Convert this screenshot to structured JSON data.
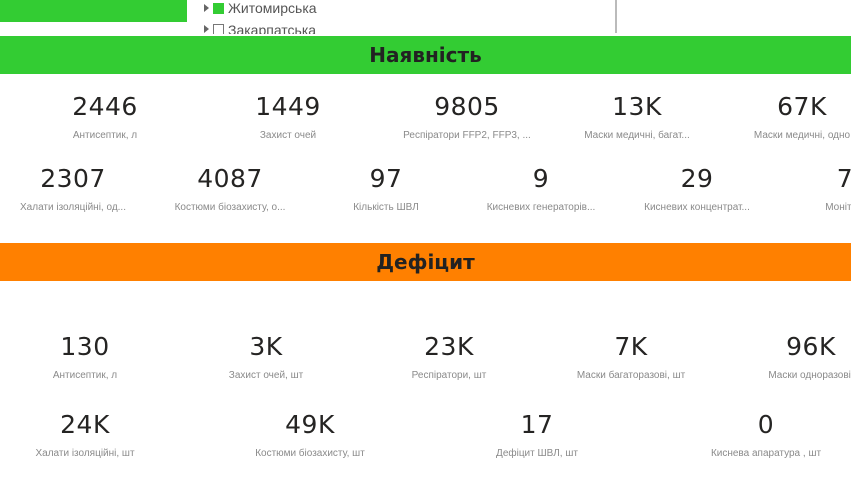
{
  "colors": {
    "green": "#33CC33",
    "orange": "#FF8000"
  },
  "tree": [
    {
      "label": "Житомирська",
      "checked": true
    },
    {
      "label": "Закарпатська",
      "checked": false
    }
  ],
  "availability": {
    "title": "Наявність",
    "cards": [
      {
        "value": "2446",
        "label": "Антисептик, л"
      },
      {
        "value": "1449",
        "label": "Захист очей"
      },
      {
        "value": "9805",
        "label": "Респіратори FFP2, FFP3, ..."
      },
      {
        "value": "13K",
        "label": "Маски медичні, багат..."
      },
      {
        "value": "67K",
        "label": "Маски медичні, одно"
      },
      {
        "value": "2307",
        "label": "Халати ізоляційні, од..."
      },
      {
        "value": "4087",
        "label": "Костюми біозахисту, о..."
      },
      {
        "value": "97",
        "label": "Кількість ШВЛ"
      },
      {
        "value": "9",
        "label": "Кисневих генераторів..."
      },
      {
        "value": "29",
        "label": "Кисневих концентрат..."
      },
      {
        "value": "7",
        "label": "Моніторі"
      }
    ]
  },
  "deficit": {
    "title": "Дефіцит",
    "cards": [
      {
        "value": "130",
        "label": "Антисептик, л"
      },
      {
        "value": "3K",
        "label": "Захист очей, шт"
      },
      {
        "value": "23K",
        "label": "Респіратори, шт"
      },
      {
        "value": "7K",
        "label": "Маски багаторазові, шт"
      },
      {
        "value": "96K",
        "label": "Маски одноразові,"
      },
      {
        "value": "24K",
        "label": "Халати ізоляційні, шт"
      },
      {
        "value": "49K",
        "label": "Костюми біозахисту, шт"
      },
      {
        "value": "17",
        "label": "Дефіцит ШВЛ, шт"
      },
      {
        "value": "0",
        "label": "Киснева апаратура , шт"
      }
    ]
  }
}
